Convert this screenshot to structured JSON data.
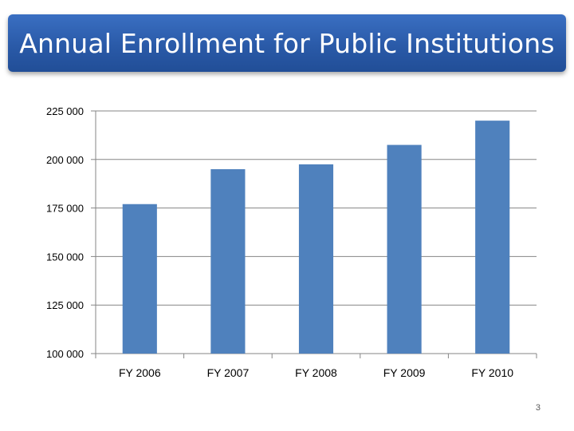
{
  "slide": {
    "title": "Annual Enrollment for Public Institutions",
    "page_number": "3"
  },
  "colors": {
    "bar": "#4f81bd",
    "title_bar": "#2a5aa8",
    "axis": "#868686",
    "text": "#000000"
  },
  "chart_data": {
    "type": "bar",
    "title": "Annual Enrollment for Public Institutions",
    "xlabel": "",
    "ylabel": "",
    "categories": [
      "FY 2006",
      "FY 2007",
      "FY 2008",
      "FY 2009",
      "FY 2010"
    ],
    "values": [
      177000,
      195000,
      197500,
      207500,
      220000
    ],
    "ylim": [
      100000,
      225000
    ],
    "yticks": [
      225000,
      200000,
      175000,
      150000,
      125000,
      100000
    ],
    "ytick_labels": [
      "225 000",
      "200 000",
      "175 000",
      "150 000",
      "125 000",
      "100 000"
    ],
    "grid": true,
    "legend": "none"
  }
}
